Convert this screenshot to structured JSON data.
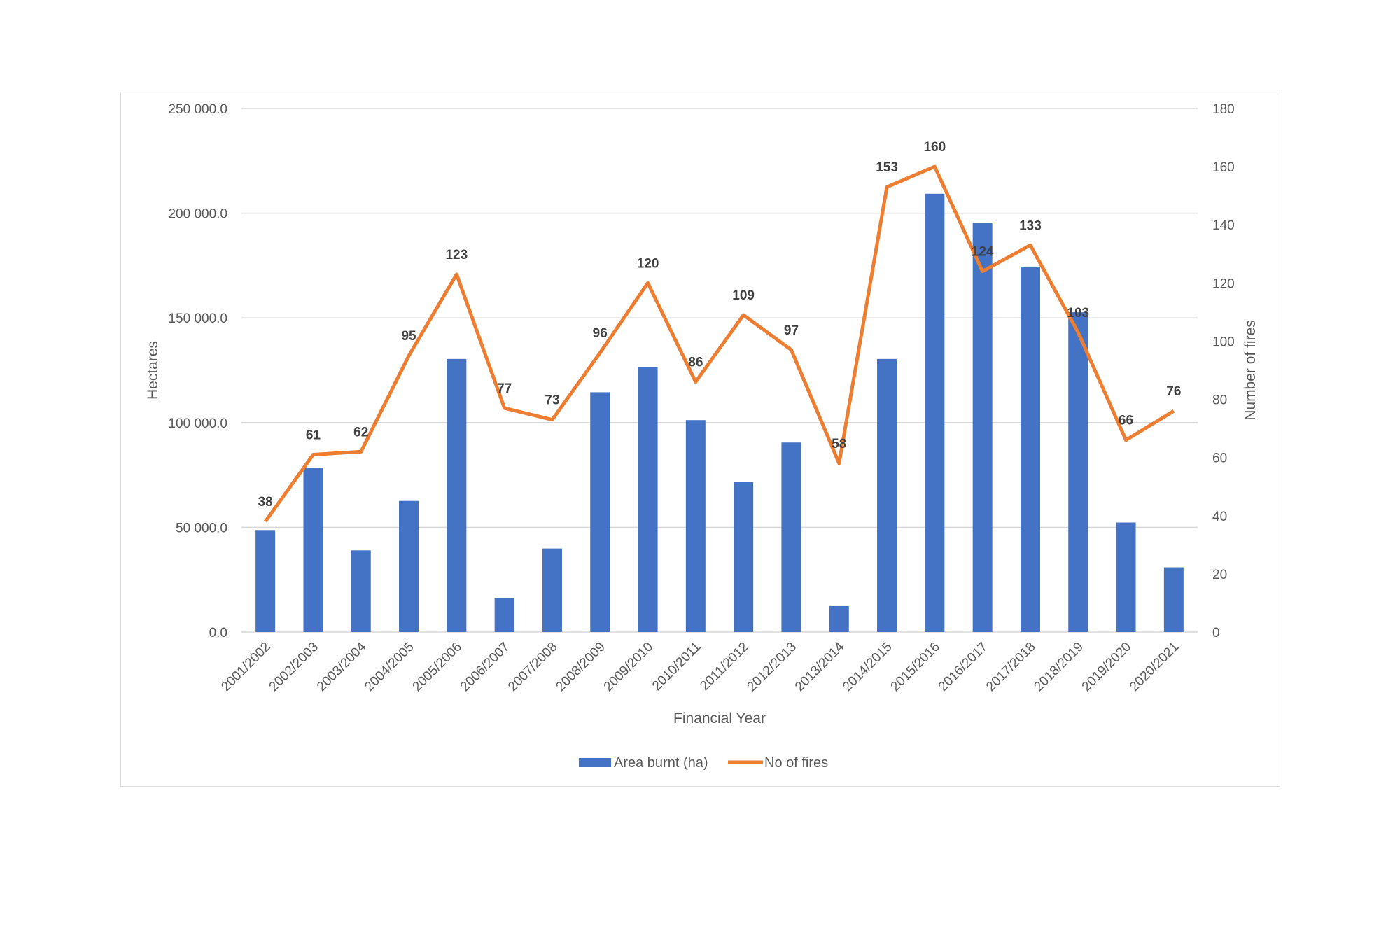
{
  "chart_data": {
    "type": "bar+line",
    "xlabel": "Financial Year",
    "ylabel": "Hectares",
    "y2label": "Number of fires",
    "ylim": [
      0,
      250000
    ],
    "y2lim": [
      0,
      180
    ],
    "yticks": [
      "0.0",
      "50 000.0",
      "100 000.0",
      "150 000.0",
      "200 000.0",
      "250 000.0"
    ],
    "y2ticks": [
      "0",
      "20",
      "40",
      "60",
      "80",
      "100",
      "120",
      "140",
      "160",
      "180"
    ],
    "grid": true,
    "legend_position": "bottom",
    "categories": [
      "2001/2002",
      "2002/2003",
      "2003/2004",
      "2004/2005",
      "2005/2006",
      "2006/2007",
      "2007/2008",
      "2008/2009",
      "2009/2010",
      "2010/2011",
      "2011/2012",
      "2012/2013",
      "2013/2014",
      "2014/2015",
      "2015/2016",
      "2016/2017",
      "2017/2018",
      "2018/2019",
      "2019/2020",
      "2020/2021"
    ],
    "series": [
      {
        "name": "Area burnt (ha)",
        "type": "bar",
        "axis": "left",
        "color": "#4472c4",
        "values": [
          48700,
          78500,
          39000,
          62600,
          130400,
          16300,
          39900,
          114500,
          126500,
          101200,
          71600,
          90500,
          12400,
          130400,
          209300,
          195500,
          174500,
          152700,
          52300,
          30900
        ]
      },
      {
        "name": "No of fires",
        "type": "line",
        "axis": "right",
        "color": "#ed7d31",
        "values": [
          38,
          61,
          62,
          95,
          123,
          77,
          73,
          96,
          120,
          86,
          109,
          97,
          58,
          153,
          160,
          124,
          133,
          103,
          66,
          76
        ]
      }
    ]
  }
}
